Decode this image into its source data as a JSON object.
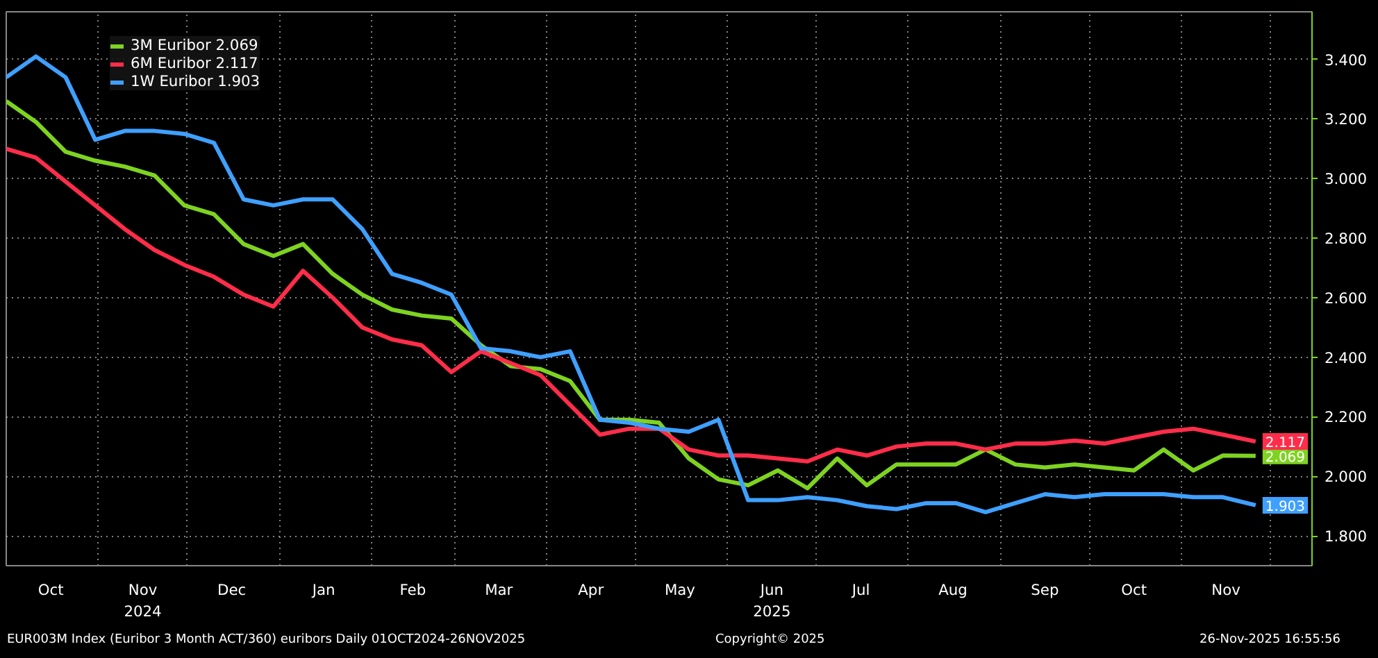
{
  "chart_data": {
    "type": "line",
    "x": [
      "2024-10-01",
      "2024-10-11",
      "2024-10-21",
      "2024-10-31",
      "2024-11-10",
      "2024-11-20",
      "2024-11-30",
      "2024-12-10",
      "2024-12-20",
      "2024-12-30",
      "2025-01-09",
      "2025-01-19",
      "2025-01-29",
      "2025-02-08",
      "2025-02-18",
      "2025-02-28",
      "2025-03-10",
      "2025-03-20",
      "2025-03-30",
      "2025-04-09",
      "2025-04-19",
      "2025-04-29",
      "2025-05-09",
      "2025-05-19",
      "2025-05-29",
      "2025-06-08",
      "2025-06-18",
      "2025-06-28",
      "2025-07-08",
      "2025-07-18",
      "2025-07-28",
      "2025-08-07",
      "2025-08-17",
      "2025-08-27",
      "2025-09-06",
      "2025-09-16",
      "2025-09-26",
      "2025-10-06",
      "2025-10-16",
      "2025-10-26",
      "2025-11-05",
      "2025-11-15",
      "2025-11-26"
    ],
    "series": [
      {
        "name": "3M Euribor 2.069",
        "color": "#7ed321",
        "values": [
          3.26,
          3.19,
          3.09,
          3.06,
          3.04,
          3.01,
          2.91,
          2.88,
          2.78,
          2.74,
          2.78,
          2.68,
          2.61,
          2.56,
          2.54,
          2.53,
          2.44,
          2.37,
          2.36,
          2.32,
          2.19,
          2.19,
          2.18,
          2.06,
          1.99,
          1.97,
          2.02,
          1.96,
          2.06,
          1.97,
          2.04,
          2.04,
          2.04,
          2.09,
          2.04,
          2.03,
          2.04,
          2.03,
          2.02,
          2.09,
          2.02,
          2.07,
          2.069
        ]
      },
      {
        "name": "6M Euribor 2.117",
        "color": "#ff2d4a",
        "values": [
          3.1,
          3.07,
          2.99,
          2.91,
          2.83,
          2.76,
          2.71,
          2.67,
          2.61,
          2.57,
          2.69,
          2.6,
          2.5,
          2.46,
          2.44,
          2.35,
          2.42,
          2.38,
          2.34,
          2.24,
          2.14,
          2.16,
          2.16,
          2.09,
          2.07,
          2.07,
          2.06,
          2.05,
          2.09,
          2.07,
          2.1,
          2.11,
          2.11,
          2.09,
          2.11,
          2.11,
          2.12,
          2.11,
          2.13,
          2.15,
          2.16,
          2.14,
          2.117
        ]
      },
      {
        "name": "1W Euribor 1.903",
        "color": "#3fa0ff",
        "values": [
          3.34,
          3.41,
          3.34,
          3.13,
          3.16,
          3.16,
          3.15,
          3.12,
          2.93,
          2.91,
          2.93,
          2.93,
          2.83,
          2.68,
          2.65,
          2.61,
          2.43,
          2.42,
          2.4,
          2.42,
          2.19,
          2.18,
          2.16,
          2.15,
          2.19,
          1.92,
          1.92,
          1.93,
          1.92,
          1.9,
          1.89,
          1.91,
          1.91,
          1.88,
          1.91,
          1.94,
          1.93,
          1.94,
          1.94,
          1.94,
          1.93,
          1.93,
          1.903
        ]
      }
    ],
    "ylim": [
      1.7,
      3.56
    ],
    "yticks": [
      {
        "value": 1.8,
        "label": "1.800"
      },
      {
        "value": 2.0,
        "label": "2.000"
      },
      {
        "value": 2.2,
        "label": "2.200"
      },
      {
        "value": 2.4,
        "label": "2.400"
      },
      {
        "value": 2.6,
        "label": "2.600"
      },
      {
        "value": 2.8,
        "label": "2.800"
      },
      {
        "value": 3.0,
        "label": "3.000"
      },
      {
        "value": 3.2,
        "label": "3.200"
      },
      {
        "value": 3.4,
        "label": "3.400"
      }
    ],
    "xlim": [
      "2024-10-01",
      "2025-12-15"
    ],
    "xticks": [
      {
        "value": "2024-10-16",
        "label": "Oct"
      },
      {
        "value": "2024-11-01",
        "label": null
      },
      {
        "value": "2024-11-16",
        "label": "Nov\n2024"
      },
      {
        "value": "2024-12-01",
        "label": null
      },
      {
        "value": "2024-12-16",
        "label": "Dec"
      },
      {
        "value": "2025-01-01",
        "label": null
      },
      {
        "value": "2025-01-16",
        "label": "Jan"
      },
      {
        "value": "2025-02-01",
        "label": null
      },
      {
        "value": "2025-02-15",
        "label": "Feb"
      },
      {
        "value": "2025-03-01",
        "label": null
      },
      {
        "value": "2025-03-16",
        "label": "Mar"
      },
      {
        "value": "2025-04-01",
        "label": null
      },
      {
        "value": "2025-04-16",
        "label": "Apr"
      },
      {
        "value": "2025-05-01",
        "label": null
      },
      {
        "value": "2025-05-16",
        "label": "May"
      },
      {
        "value": "2025-06-01",
        "label": null
      },
      {
        "value": "2025-06-16",
        "label": "Jun\n2025"
      },
      {
        "value": "2025-07-01",
        "label": null
      },
      {
        "value": "2025-07-16",
        "label": "Jul"
      },
      {
        "value": "2025-08-01",
        "label": null
      },
      {
        "value": "2025-08-16",
        "label": "Aug"
      },
      {
        "value": "2025-09-01",
        "label": null
      },
      {
        "value": "2025-09-16",
        "label": "Sep"
      },
      {
        "value": "2025-10-01",
        "label": null
      },
      {
        "value": "2025-10-16",
        "label": "Oct"
      },
      {
        "value": "2025-11-01",
        "label": null
      },
      {
        "value": "2025-11-16",
        "label": "Nov"
      },
      {
        "value": "2025-12-01",
        "label": null
      }
    ],
    "grid": true,
    "legend": "top left",
    "line_style": "solid",
    "annotations": [
      {
        "text": "2.069",
        "x": "2025-11-26",
        "y": 2.069
      },
      {
        "text": "2.117",
        "x": "2025-11-26",
        "y": 2.117
      },
      {
        "text": "1.903",
        "x": "2025-11-26",
        "y": 1.903
      },
      "EUR003M Index (Euribor 3 Month ACT/360) euribors Daily 01OCT2024-26NOV2025",
      "Copyright© 2025",
      "26-Nov-2025 16:55:56"
    ]
  }
}
